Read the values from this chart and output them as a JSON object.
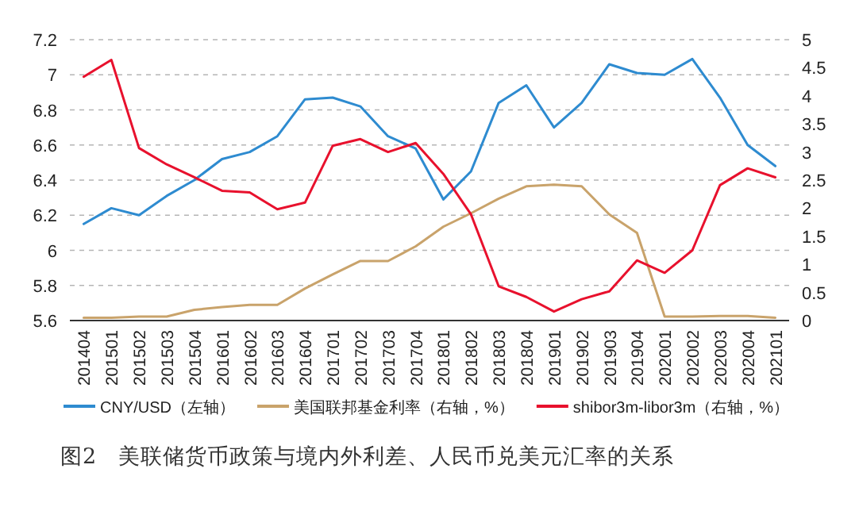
{
  "chart_data": {
    "type": "line",
    "title": "图2　美联储货币政策与境内外利差、人民币兑美元汇率的关系",
    "categories": [
      "201404",
      "201501",
      "201502",
      "201503",
      "201504",
      "201601",
      "201602",
      "201603",
      "201604",
      "201701",
      "201702",
      "201703",
      "201704",
      "201801",
      "201802",
      "201803",
      "201804",
      "201901",
      "201902",
      "201903",
      "201904",
      "202001",
      "202002",
      "202003",
      "202004",
      "202101"
    ],
    "series": [
      {
        "name": "CNY/USD（左轴）",
        "color": "#2e8bd0",
        "axis": "y",
        "values": [
          6.15,
          6.24,
          6.2,
          6.31,
          6.4,
          6.52,
          6.56,
          6.65,
          6.86,
          6.87,
          6.82,
          6.65,
          6.58,
          6.29,
          6.45,
          6.84,
          6.94,
          6.7,
          6.84,
          7.06,
          7.01,
          7.0,
          7.09,
          6.87,
          6.6,
          6.48
        ]
      },
      {
        "name": "美国联邦基金利率（右轴，%）",
        "color": "#c9a36b",
        "axis": "y2",
        "values": [
          0.05,
          0.05,
          0.07,
          0.07,
          0.19,
          0.24,
          0.28,
          0.28,
          0.57,
          0.82,
          1.06,
          1.06,
          1.32,
          1.67,
          1.91,
          2.17,
          2.39,
          2.42,
          2.39,
          1.89,
          1.56,
          0.07,
          0.07,
          0.08,
          0.08,
          0.05
        ]
      },
      {
        "name": "shibor3m-libor3m（右轴，%）",
        "color": "#e8112d",
        "axis": "y2",
        "values": [
          4.34,
          4.64,
          3.07,
          2.78,
          2.55,
          2.31,
          2.28,
          1.98,
          2.1,
          3.11,
          3.23,
          3.0,
          3.16,
          2.61,
          1.89,
          0.61,
          0.42,
          0.16,
          0.38,
          0.52,
          1.07,
          0.85,
          1.25,
          2.41,
          2.71,
          2.55
        ]
      }
    ],
    "ylim": [
      5.6,
      7.2
    ],
    "yticks": [
      5.6,
      5.8,
      6,
      6.2,
      6.4,
      6.6,
      6.8,
      7,
      7.2
    ],
    "y2lim": [
      0,
      5
    ],
    "y2ticks": [
      0,
      0.5,
      1,
      1.5,
      2,
      2.5,
      3,
      3.5,
      4,
      4.5,
      5
    ],
    "grid": "y",
    "legend": "bottom"
  }
}
